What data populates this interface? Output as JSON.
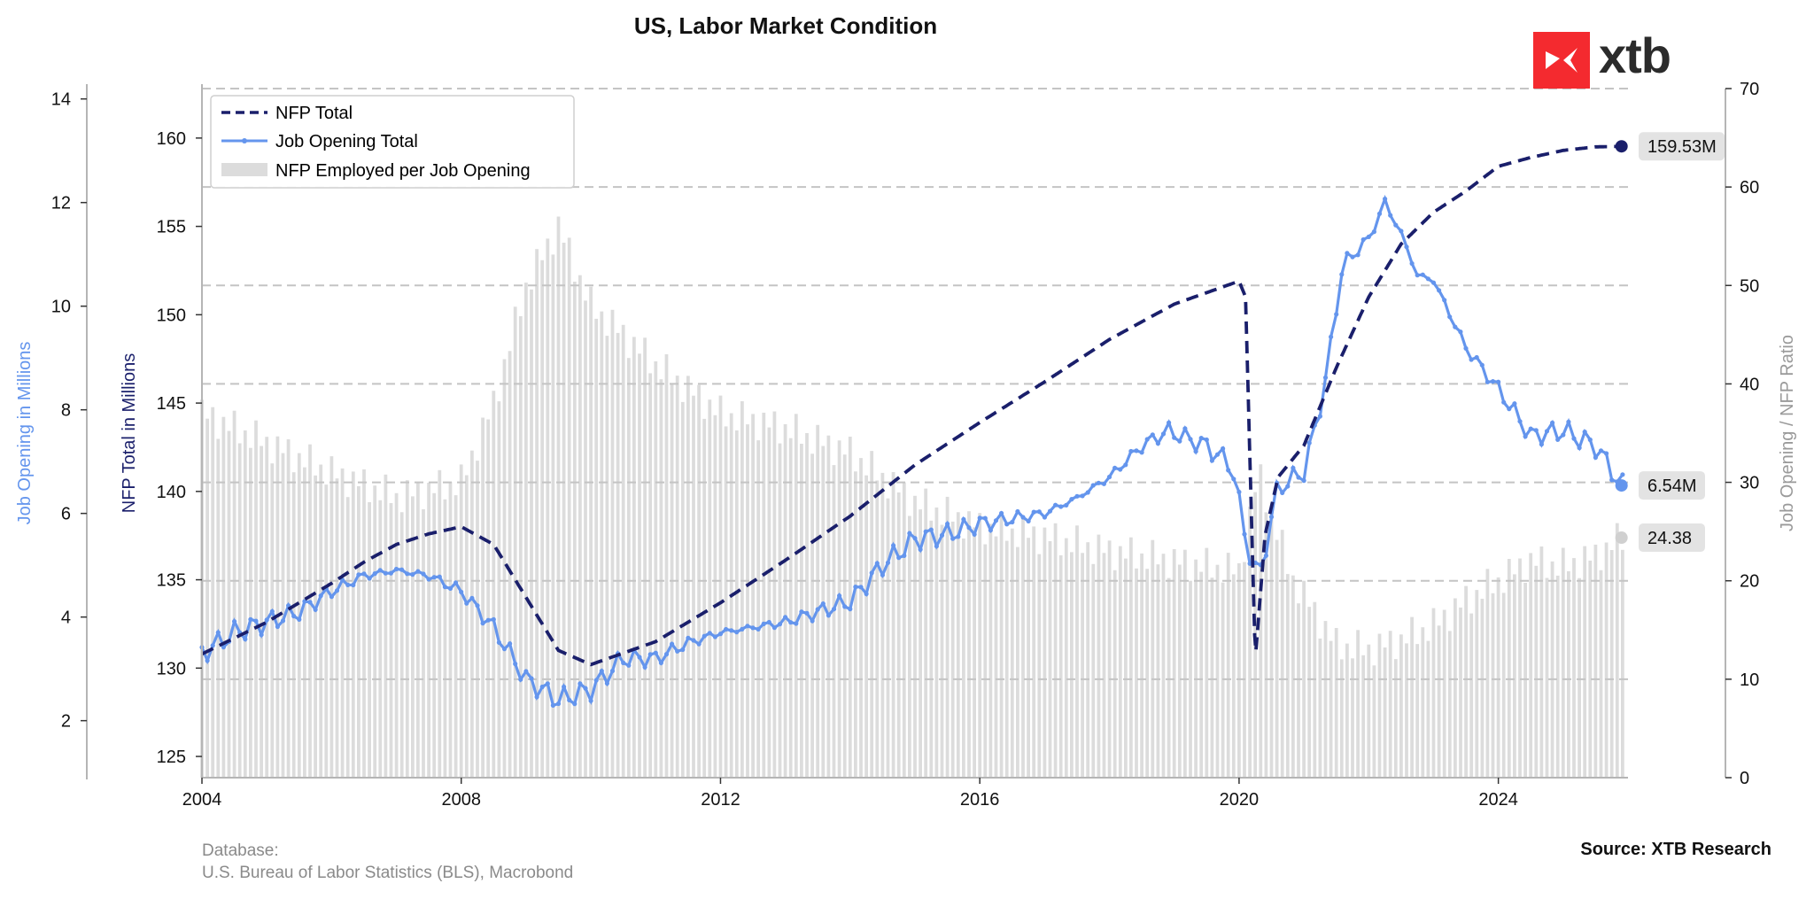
{
  "title": "US, Labor Market Condition",
  "logo_text": "xtb",
  "source": "Source: XTB Research",
  "database": {
    "label": "Database:",
    "sources": "U.S. Bureau of Labor Statistics (BLS), Macrobond"
  },
  "colors": {
    "nfp": "#1a1f6b",
    "jobs": "#6495ed",
    "ratio": "#dcdcdc",
    "grid": "#c4c4c4",
    "logo": "#f42a2f"
  },
  "chart_data": {
    "type": "line",
    "x_ticks": [
      "2004",
      "2008",
      "2012",
      "2016",
      "2020",
      "2024"
    ],
    "xlim": [
      2004.0,
      2026.0
    ],
    "axes": {
      "nfp": {
        "label": "NFP Total in Millions",
        "ticks": [
          "125",
          "130",
          "135",
          "140",
          "145",
          "150",
          "155",
          "160"
        ],
        "ylim": [
          123.8,
          162.8
        ]
      },
      "jobs": {
        "label": "Job Opening in Millions",
        "ticks": [
          "2",
          "4",
          "6",
          "8",
          "10",
          "12",
          "14"
        ],
        "ylim": [
          0.9,
          14.2
        ]
      },
      "ratio": {
        "label": "Job Opening / NFP Ratio",
        "ticks": [
          "0",
          "10",
          "20",
          "30",
          "40",
          "50",
          "60",
          "70"
        ],
        "ylim": [
          0,
          70
        ]
      }
    },
    "grid": "horizontal dashed",
    "legend": {
      "position": "top-left",
      "items": [
        "NFP Total",
        "Job Opening Total",
        "NFP Employed per Job Opening"
      ]
    },
    "series": [
      {
        "name": "NFP Total",
        "axis": "nfp",
        "style": "dashed",
        "x": [
          2004.0,
          2005.0,
          2006.0,
          2006.5,
          2007.0,
          2007.5,
          2008.0,
          2008.5,
          2009.0,
          2009.5,
          2010.0,
          2011.0,
          2012.0,
          2013.0,
          2014.0,
          2015.0,
          2016.0,
          2017.0,
          2018.0,
          2019.0,
          2020.0,
          2020.1,
          2020.25,
          2020.4,
          2020.6,
          2021.0,
          2021.5,
          2022.0,
          2022.5,
          2023.0,
          2023.5,
          2024.0,
          2024.5,
          2025.0,
          2025.5,
          2025.9
        ],
        "values": [
          130.8,
          132.6,
          134.8,
          136.0,
          137.0,
          137.6,
          138.0,
          137.0,
          134.0,
          131.0,
          130.2,
          131.5,
          133.7,
          136.1,
          138.6,
          141.5,
          143.9,
          146.2,
          148.6,
          150.6,
          151.9,
          151.0,
          130.5,
          137.5,
          140.8,
          142.6,
          147.0,
          151.0,
          154.0,
          155.8,
          157.0,
          158.4,
          158.9,
          159.3,
          159.5,
          159.53
        ],
        "end_label": "159.53M"
      },
      {
        "name": "Job Opening Total",
        "axis": "jobs",
        "style": "solid-markers",
        "x": [
          2004.0,
          2004.5,
          2005.0,
          2005.5,
          2006.0,
          2006.5,
          2007.0,
          2007.5,
          2008.0,
          2008.5,
          2009.0,
          2009.5,
          2010.0,
          2010.5,
          2011.0,
          2011.5,
          2012.0,
          2012.5,
          2013.0,
          2013.5,
          2014.0,
          2014.5,
          2015.0,
          2015.5,
          2016.0,
          2016.5,
          2017.0,
          2017.5,
          2018.0,
          2018.5,
          2018.9,
          2019.5,
          2019.9,
          2020.1,
          2020.3,
          2020.6,
          2021.0,
          2021.3,
          2021.6,
          2022.0,
          2022.25,
          2022.5,
          2022.75,
          2023.0,
          2023.5,
          2024.0,
          2024.5,
          2025.0,
          2025.5,
          2025.9
        ],
        "values": [
          3.3,
          3.7,
          3.9,
          4.1,
          4.5,
          4.8,
          4.9,
          4.8,
          4.5,
          3.8,
          2.8,
          2.4,
          2.6,
          3.2,
          3.2,
          3.5,
          3.7,
          3.8,
          3.9,
          4.1,
          4.3,
          5.0,
          5.5,
          5.6,
          5.8,
          5.9,
          6.0,
          6.3,
          6.7,
          7.3,
          7.6,
          7.3,
          6.9,
          5.5,
          4.7,
          6.5,
          6.8,
          8.3,
          10.8,
          11.3,
          12.0,
          11.4,
          10.6,
          10.5,
          9.2,
          8.4,
          7.5,
          7.6,
          7.3,
          6.54
        ],
        "end_label": "6.54M"
      },
      {
        "name": "NFP Employed per Job Opening",
        "axis": "ratio",
        "style": "bars",
        "x": [
          2004.0,
          2005.0,
          2006.0,
          2007.0,
          2008.0,
          2008.5,
          2009.0,
          2009.5,
          2010.0,
          2011.0,
          2012.0,
          2013.0,
          2014.0,
          2015.0,
          2016.0,
          2017.0,
          2018.0,
          2019.0,
          2020.0,
          2020.3,
          2020.8,
          2021.5,
          2022.0,
          2022.5,
          2023.0,
          2023.5,
          2024.0,
          2024.5,
          2025.0,
          2025.5,
          2025.9
        ],
        "values": [
          37.0,
          34.0,
          31.0,
          28.5,
          30.0,
          38.0,
          50.0,
          56.0,
          48.0,
          42.0,
          37.0,
          35.5,
          33.0,
          28.0,
          25.5,
          24.5,
          23.0,
          22.0,
          21.0,
          31.0,
          20.5,
          13.5,
          13.0,
          14.0,
          15.5,
          18.0,
          20.0,
          22.0,
          21.5,
          22.5,
          24.38
        ],
        "end_label": "24.38"
      }
    ]
  }
}
